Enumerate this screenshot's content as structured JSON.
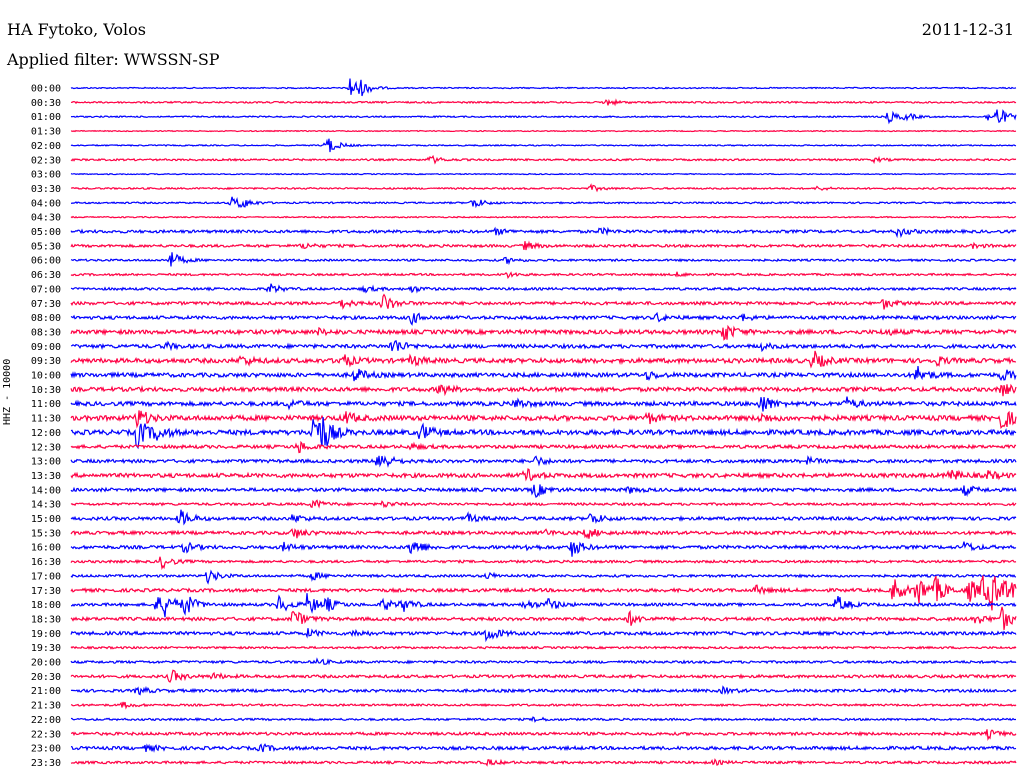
{
  "header": {
    "station": "HA Fytoko, Volos",
    "filter": "Applied filter: WWSSN-SP",
    "date": "2011-12-31"
  },
  "chart_data": {
    "type": "line",
    "title": "HA Fytoko, Volos",
    "subtitle": "Applied filter: WWSSN-SP",
    "date": "2011-12-31",
    "ylabel": "HHZ - 10000",
    "colors": {
      "odd": "#0000ff",
      "even": "#ff0044"
    },
    "rows": [
      {
        "label": "00:00",
        "noise": 0.6,
        "events": [
          [
            0.295,
            12
          ],
          [
            0.305,
            6
          ]
        ]
      },
      {
        "label": "00:30",
        "noise": 0.8,
        "events": [
          [
            0.565,
            4
          ]
        ]
      },
      {
        "label": "01:00",
        "noise": 0.7,
        "events": [
          [
            0.865,
            6
          ],
          [
            0.883,
            3
          ],
          [
            0.97,
            4
          ],
          [
            0.98,
            9
          ]
        ]
      },
      {
        "label": "01:30",
        "noise": 0.5,
        "events": []
      },
      {
        "label": "02:00",
        "noise": 0.6,
        "events": [
          [
            0.27,
            10
          ]
        ]
      },
      {
        "label": "02:30",
        "noise": 0.9,
        "events": [
          [
            0.38,
            4
          ],
          [
            0.85,
            2
          ]
        ]
      },
      {
        "label": "03:00",
        "noise": 0.5,
        "events": []
      },
      {
        "label": "03:30",
        "noise": 0.8,
        "events": [
          [
            0.55,
            3
          ],
          [
            0.79,
            2
          ]
        ]
      },
      {
        "label": "04:00",
        "noise": 0.8,
        "events": [
          [
            0.17,
            6
          ],
          [
            0.18,
            4
          ],
          [
            0.425,
            6
          ]
        ]
      },
      {
        "label": "04:30",
        "noise": 0.6,
        "events": []
      },
      {
        "label": "05:00",
        "noise": 1.4,
        "events": [
          [
            0.45,
            3
          ],
          [
            0.56,
            3
          ],
          [
            0.875,
            5
          ]
        ]
      },
      {
        "label": "05:30",
        "noise": 1.3,
        "events": [
          [
            0.245,
            3
          ],
          [
            0.48,
            4
          ],
          [
            0.955,
            2
          ]
        ]
      },
      {
        "label": "06:00",
        "noise": 1.0,
        "events": [
          [
            0.105,
            9
          ],
          [
            0.46,
            3
          ]
        ]
      },
      {
        "label": "06:30",
        "noise": 1.0,
        "events": [
          [
            0.46,
            3
          ],
          [
            0.64,
            2
          ]
        ]
      },
      {
        "label": "07:00",
        "noise": 1.2,
        "events": [
          [
            0.21,
            5
          ],
          [
            0.31,
            3
          ],
          [
            0.36,
            3
          ]
        ]
      },
      {
        "label": "07:30",
        "noise": 1.5,
        "events": [
          [
            0.285,
            5
          ],
          [
            0.33,
            10
          ],
          [
            0.86,
            5
          ]
        ]
      },
      {
        "label": "08:00",
        "noise": 1.6,
        "events": [
          [
            0.36,
            6
          ],
          [
            0.62,
            4
          ],
          [
            0.71,
            3
          ]
        ]
      },
      {
        "label": "08:30",
        "noise": 2.0,
        "events": [
          [
            0.26,
            3
          ],
          [
            0.69,
            10
          ],
          [
            0.86,
            3
          ]
        ]
      },
      {
        "label": "09:00",
        "noise": 1.8,
        "events": [
          [
            0.1,
            3
          ],
          [
            0.34,
            9
          ],
          [
            0.73,
            3
          ]
        ]
      },
      {
        "label": "09:30",
        "noise": 2.2,
        "events": [
          [
            0.18,
            5
          ],
          [
            0.285,
            8
          ],
          [
            0.36,
            5
          ],
          [
            0.785,
            10
          ],
          [
            0.915,
            4
          ]
        ]
      },
      {
        "label": "10:00",
        "noise": 2.0,
        "events": [
          [
            0.3,
            7
          ],
          [
            0.61,
            4
          ],
          [
            0.895,
            9
          ],
          [
            0.985,
            6
          ]
        ]
      },
      {
        "label": "10:30",
        "noise": 2.0,
        "events": [
          [
            0.39,
            6
          ],
          [
            0.985,
            6
          ]
        ]
      },
      {
        "label": "11:00",
        "noise": 2.0,
        "events": [
          [
            0.23,
            4
          ],
          [
            0.47,
            5
          ],
          [
            0.73,
            10
          ],
          [
            0.82,
            6
          ]
        ]
      },
      {
        "label": "11:30",
        "noise": 2.4,
        "events": [
          [
            0.07,
            10
          ],
          [
            0.29,
            6
          ],
          [
            0.61,
            5
          ],
          [
            0.73,
            4
          ],
          [
            0.985,
            12
          ]
        ]
      },
      {
        "label": "12:00",
        "noise": 2.4,
        "events": [
          [
            0.07,
            16
          ],
          [
            0.09,
            6
          ],
          [
            0.255,
            20
          ],
          [
            0.265,
            14
          ],
          [
            0.37,
            9
          ]
        ]
      },
      {
        "label": "12:30",
        "noise": 1.6,
        "events": [
          [
            0.24,
            6
          ],
          [
            0.36,
            3
          ]
        ]
      },
      {
        "label": "13:00",
        "noise": 1.6,
        "events": [
          [
            0.325,
            12
          ],
          [
            0.49,
            5
          ],
          [
            0.78,
            3
          ]
        ]
      },
      {
        "label": "13:30",
        "noise": 2.0,
        "events": [
          [
            0.48,
            7
          ],
          [
            0.93,
            6
          ],
          [
            0.97,
            4
          ]
        ]
      },
      {
        "label": "14:00",
        "noise": 1.6,
        "events": [
          [
            0.49,
            8
          ],
          [
            0.59,
            3
          ],
          [
            0.945,
            5
          ]
        ]
      },
      {
        "label": "14:30",
        "noise": 1.2,
        "events": [
          [
            0.255,
            5
          ],
          [
            0.33,
            3
          ]
        ]
      },
      {
        "label": "15:00",
        "noise": 1.6,
        "events": [
          [
            0.115,
            9
          ],
          [
            0.235,
            4
          ],
          [
            0.42,
            4
          ],
          [
            0.55,
            6
          ]
        ]
      },
      {
        "label": "15:30",
        "noise": 1.6,
        "events": [
          [
            0.235,
            6
          ],
          [
            0.5,
            3
          ],
          [
            0.545,
            6
          ]
        ]
      },
      {
        "label": "16:00",
        "noise": 1.6,
        "events": [
          [
            0.12,
            5
          ],
          [
            0.225,
            4
          ],
          [
            0.36,
            10
          ],
          [
            0.48,
            3
          ],
          [
            0.53,
            9
          ],
          [
            0.945,
            5
          ]
        ]
      },
      {
        "label": "16:30",
        "noise": 1.2,
        "events": [
          [
            0.095,
            7
          ]
        ]
      },
      {
        "label": "17:00",
        "noise": 1.2,
        "events": [
          [
            0.145,
            7
          ],
          [
            0.255,
            4
          ],
          [
            0.44,
            3
          ]
        ]
      },
      {
        "label": "17:30",
        "noise": 1.6,
        "events": [
          [
            0.725,
            4
          ],
          [
            0.87,
            14
          ],
          [
            0.895,
            16
          ],
          [
            0.915,
            12
          ],
          [
            0.95,
            12
          ],
          [
            0.965,
            16
          ],
          [
            0.975,
            14
          ],
          [
            0.99,
            10
          ]
        ]
      },
      {
        "label": "18:00",
        "noise": 1.4,
        "events": [
          [
            0.09,
            9
          ],
          [
            0.1,
            10
          ],
          [
            0.12,
            11
          ],
          [
            0.22,
            9
          ],
          [
            0.25,
            11
          ],
          [
            0.27,
            6
          ],
          [
            0.33,
            6
          ],
          [
            0.35,
            7
          ],
          [
            0.48,
            5
          ],
          [
            0.505,
            6
          ],
          [
            0.81,
            9
          ]
        ]
      },
      {
        "label": "18:30",
        "noise": 1.6,
        "events": [
          [
            0.235,
            10
          ],
          [
            0.59,
            7
          ],
          [
            0.955,
            6
          ],
          [
            0.985,
            12
          ]
        ]
      },
      {
        "label": "19:00",
        "noise": 1.6,
        "events": [
          [
            0.25,
            4
          ],
          [
            0.3,
            3
          ],
          [
            0.44,
            9
          ]
        ]
      },
      {
        "label": "19:30",
        "noise": 1.0,
        "events": []
      },
      {
        "label": "20:00",
        "noise": 1.2,
        "events": [
          [
            0.26,
            3
          ]
        ]
      },
      {
        "label": "20:30",
        "noise": 1.4,
        "events": [
          [
            0.105,
            7
          ],
          [
            0.15,
            3
          ]
        ]
      },
      {
        "label": "21:00",
        "noise": 1.4,
        "events": [
          [
            0.07,
            4
          ],
          [
            0.69,
            3
          ]
        ]
      },
      {
        "label": "21:30",
        "noise": 1.0,
        "events": [
          [
            0.055,
            3
          ]
        ]
      },
      {
        "label": "22:00",
        "noise": 1.0,
        "events": [
          [
            0.49,
            2
          ]
        ]
      },
      {
        "label": "22:30",
        "noise": 1.4,
        "events": [
          [
            0.97,
            4
          ]
        ]
      },
      {
        "label": "23:00",
        "noise": 1.6,
        "events": [
          [
            0.08,
            3
          ],
          [
            0.2,
            4
          ]
        ]
      },
      {
        "label": "23:30",
        "noise": 1.2,
        "events": [
          [
            0.44,
            3
          ],
          [
            0.68,
            2
          ]
        ]
      }
    ]
  }
}
